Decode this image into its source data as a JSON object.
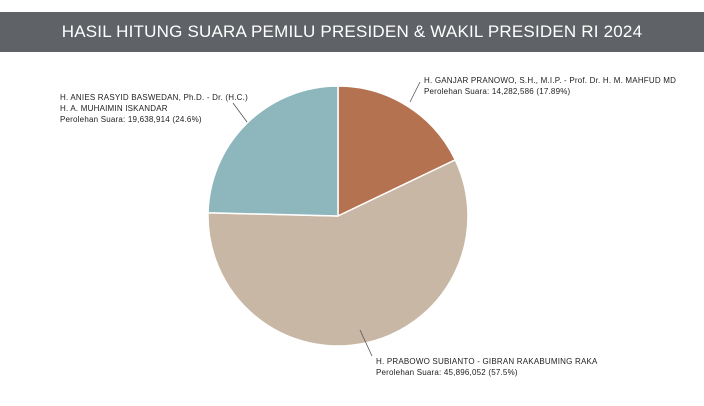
{
  "chart_data": {
    "type": "pie",
    "title": "HASIL HITUNG SUARA PEMILU PRESIDEN & WAKIL PRESIDEN RI 2024",
    "categories": [
      "H. GANJAR PRANOWO, S.H., M.I.P. - Prof. Dr. H. M. MAHFUD MD",
      "H. PRABOWO SUBIANTO - GIBRAN RAKABUMING RAKA",
      "H. ANIES RASYID BASWEDAN, Ph.D. - Dr. (H.C.)\nH. A. MUHAIMIN ISKANDAR"
    ],
    "values": [
      14282586,
      45896052,
      19638914
    ],
    "value_labels": [
      "Perolehan Suara: 14,282,586 (17.89%)",
      "Perolehan Suara: 45,896,052 (57.5%)",
      "Perolehan Suara: 19,638,914 (24.6%)"
    ],
    "colors": [
      "#b57250",
      "#c8b7a4",
      "#8db7bc"
    ]
  }
}
